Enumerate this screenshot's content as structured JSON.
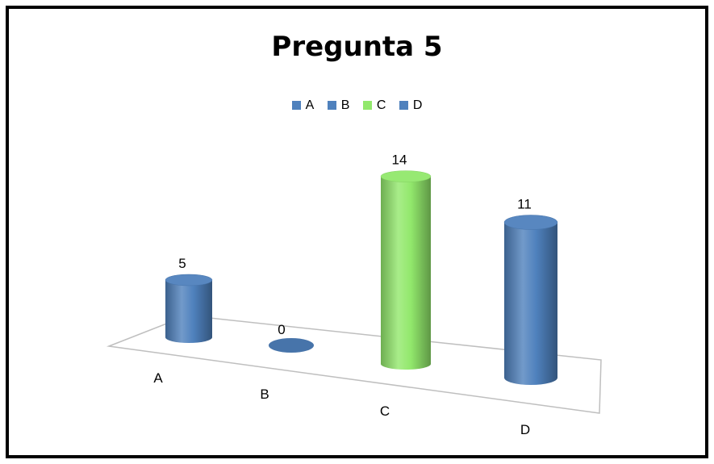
{
  "chart_data": {
    "type": "bar",
    "style": "3d-cylinder",
    "title": "Pregunta 5",
    "categories": [
      "A",
      "B",
      "C",
      "D"
    ],
    "values": [
      5,
      0,
      14,
      11
    ],
    "legend": {
      "position": "top",
      "entries": [
        "A",
        "B",
        "C",
        "D"
      ]
    },
    "colors": [
      "#4f81bd",
      "#4f81bd",
      "#92e86c",
      "#4f81bd"
    ],
    "data_labels": [
      "5",
      "0",
      "14",
      "11"
    ],
    "grid": false
  }
}
